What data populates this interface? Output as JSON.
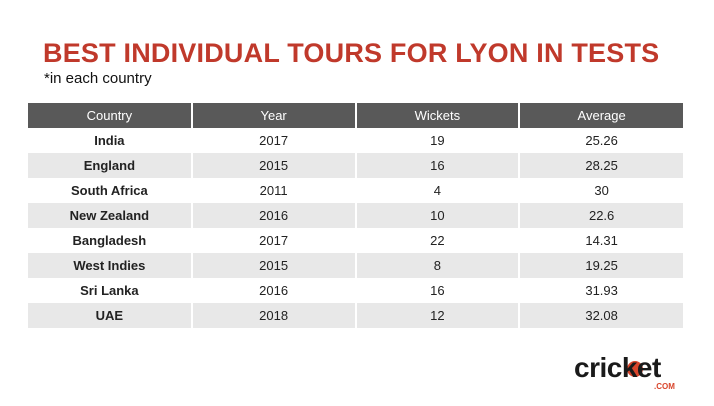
{
  "chart_data": {
    "type": "table",
    "title": "BEST INDIVIDUAL TOURS FOR LYON IN TESTS",
    "subtitle": "*in each country",
    "columns": [
      "Country",
      "Year",
      "Wickets",
      "Average"
    ],
    "rows": [
      [
        "India",
        "2017",
        "19",
        "25.26"
      ],
      [
        "England",
        "2015",
        "16",
        "28.25"
      ],
      [
        "South Africa",
        "2011",
        "4",
        "30"
      ],
      [
        "New Zealand",
        "2016",
        "10",
        "22.6"
      ],
      [
        "Bangladesh",
        "2017",
        "22",
        "14.31"
      ],
      [
        "West Indies",
        "2015",
        "8",
        "19.25"
      ],
      [
        "Sri Lanka",
        "2016",
        "16",
        "31.93"
      ],
      [
        "UAE",
        "2018",
        "12",
        "32.08"
      ]
    ]
  },
  "colors": {
    "title": "#c0392b",
    "header_bg": "#595959",
    "stripe_bg": "#e8e8e8",
    "brand": "#d9452b"
  },
  "logo": {
    "text": "cricket",
    "sub": ".COM"
  }
}
